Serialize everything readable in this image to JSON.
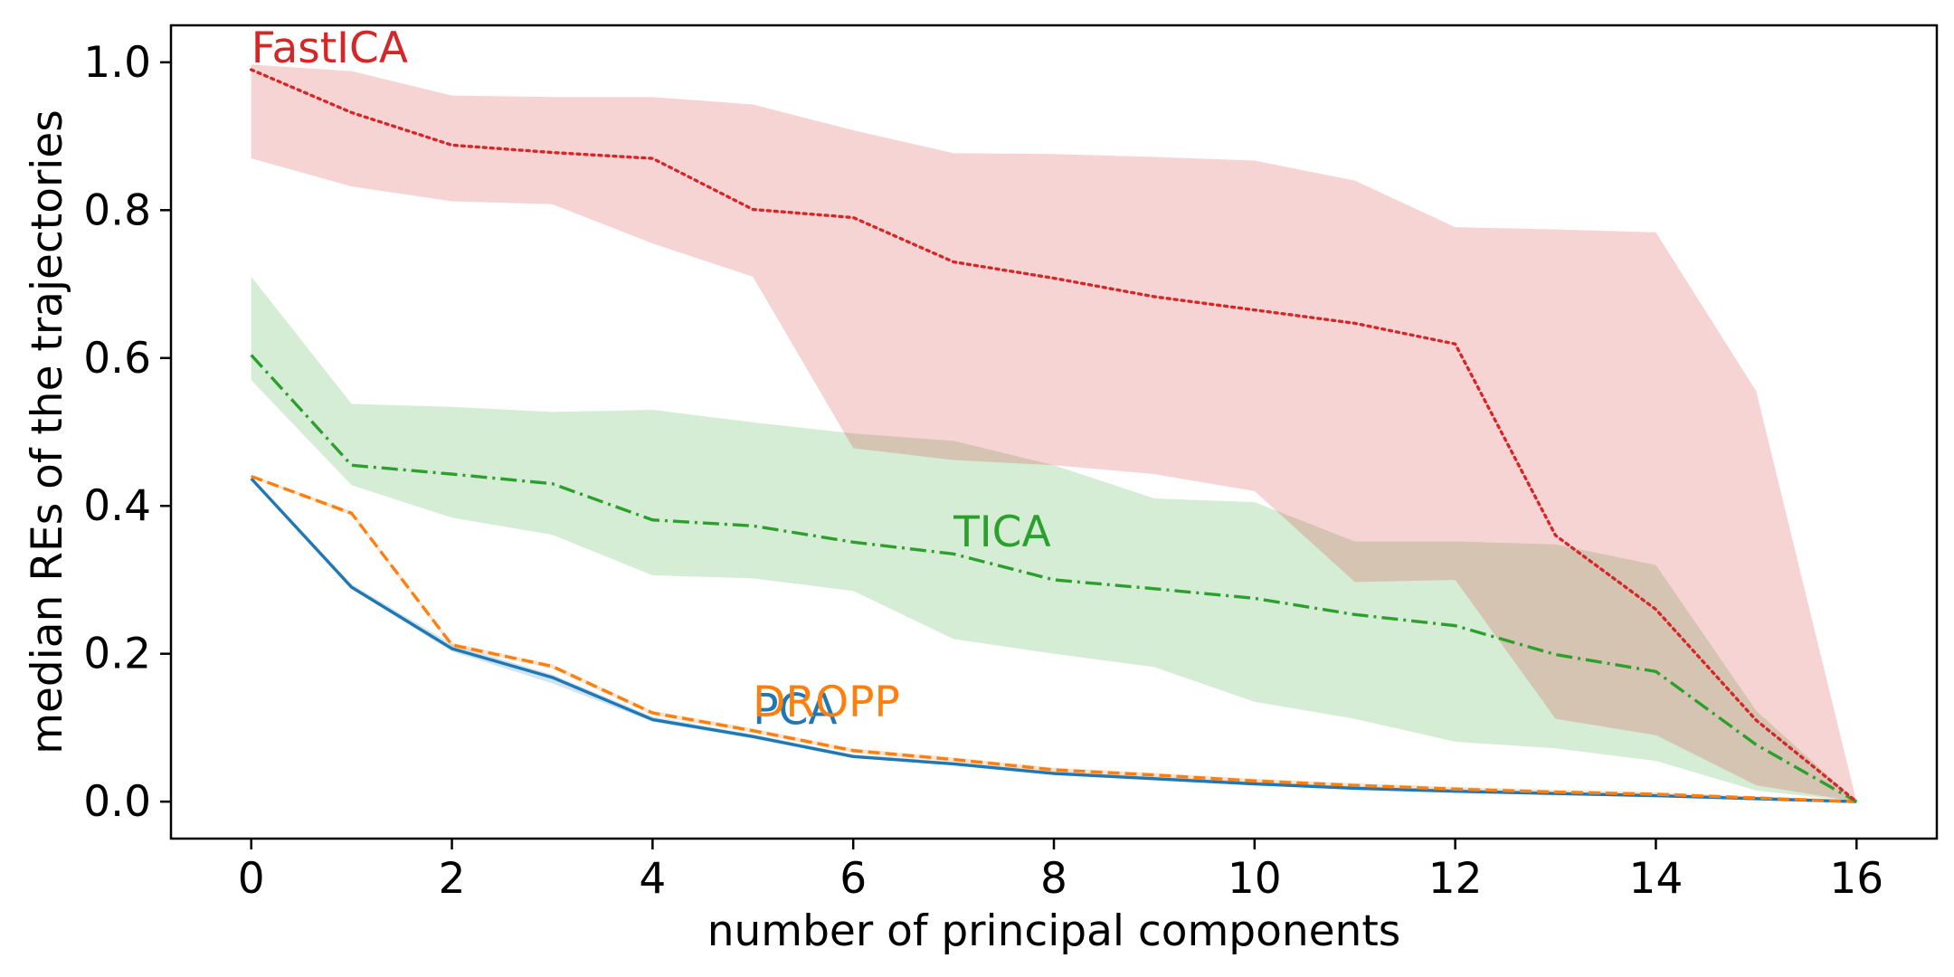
{
  "chart_data": {
    "type": "line",
    "title": "",
    "xlabel": "number of principal components",
    "ylabel": "median REs of the trajectories",
    "xlim": [
      -0.8,
      16.8
    ],
    "ylim": [
      -0.05,
      1.05
    ],
    "xticks": [
      0,
      2,
      4,
      6,
      8,
      10,
      12,
      14,
      16
    ],
    "xtick_labels": [
      "0",
      "2",
      "4",
      "6",
      "8",
      "10",
      "12",
      "14",
      "16"
    ],
    "yticks": [
      0.0,
      0.2,
      0.4,
      0.6,
      0.8,
      1.0
    ],
    "ytick_labels": [
      "0.0",
      "0.2",
      "0.4",
      "0.6",
      "0.8",
      "1.0"
    ],
    "grid": false,
    "legend": "none (inline series labels)",
    "x": [
      0,
      1,
      2,
      3,
      4,
      5,
      6,
      7,
      8,
      9,
      10,
      11,
      12,
      13,
      14,
      15,
      16
    ],
    "series": [
      {
        "name": "PCA",
        "color": "#1f77b4",
        "style": "solid",
        "label_at": [
          5,
          0.105
        ],
        "values": [
          0.437,
          0.29,
          0.207,
          0.168,
          0.111,
          0.088,
          0.061,
          0.051,
          0.038,
          0.031,
          0.024,
          0.018,
          0.014,
          0.011,
          0.008,
          0.004,
          0.0
        ],
        "band_low": [
          0.435,
          0.288,
          0.203,
          0.16,
          0.108,
          0.085,
          0.059,
          0.049,
          0.036,
          0.029,
          0.022,
          0.016,
          0.012,
          0.009,
          0.006,
          0.003,
          0.0
        ],
        "band_high": [
          0.44,
          0.294,
          0.213,
          0.172,
          0.115,
          0.091,
          0.064,
          0.054,
          0.041,
          0.034,
          0.027,
          0.021,
          0.017,
          0.013,
          0.01,
          0.005,
          0.0
        ]
      },
      {
        "name": "DROPP",
        "color": "#ff7f0e",
        "style": "dashed",
        "label_at": [
          5,
          0.115
        ],
        "values": [
          0.44,
          0.39,
          0.212,
          0.183,
          0.12,
          0.096,
          0.069,
          0.057,
          0.043,
          0.036,
          0.028,
          0.022,
          0.017,
          0.013,
          0.01,
          0.005,
          0.0
        ],
        "band_low": [
          0.438,
          0.387,
          0.209,
          0.18,
          0.117,
          0.093,
          0.066,
          0.054,
          0.04,
          0.033,
          0.025,
          0.019,
          0.014,
          0.01,
          0.007,
          0.003,
          0.0
        ],
        "band_high": [
          0.442,
          0.393,
          0.215,
          0.186,
          0.123,
          0.099,
          0.072,
          0.06,
          0.046,
          0.039,
          0.031,
          0.025,
          0.02,
          0.016,
          0.013,
          0.007,
          0.0
        ]
      },
      {
        "name": "TICA",
        "color": "#2ca02c",
        "style": "dashdot",
        "label_at": [
          7,
          0.345
        ],
        "values": [
          0.604,
          0.455,
          0.443,
          0.43,
          0.381,
          0.373,
          0.351,
          0.335,
          0.3,
          0.288,
          0.275,
          0.253,
          0.238,
          0.199,
          0.176,
          0.077,
          0.0
        ],
        "band_low": [
          0.57,
          0.428,
          0.384,
          0.361,
          0.306,
          0.302,
          0.285,
          0.22,
          0.2,
          0.182,
          0.135,
          0.112,
          0.081,
          0.072,
          0.055,
          0.015,
          0.0
        ],
        "band_high": [
          0.71,
          0.538,
          0.534,
          0.527,
          0.53,
          0.513,
          0.498,
          0.488,
          0.455,
          0.41,
          0.405,
          0.352,
          0.352,
          0.348,
          0.32,
          0.123,
          0.0
        ]
      },
      {
        "name": "FastICA",
        "color": "#d62728",
        "style": "dotted",
        "label_at": [
          0,
          1.0
        ],
        "values": [
          0.99,
          0.932,
          0.888,
          0.878,
          0.87,
          0.801,
          0.79,
          0.73,
          0.708,
          0.683,
          0.665,
          0.647,
          0.619,
          0.36,
          0.26,
          0.11,
          0.0
        ],
        "band_low": [
          0.87,
          0.832,
          0.812,
          0.808,
          0.755,
          0.71,
          0.478,
          0.462,
          0.455,
          0.443,
          0.42,
          0.297,
          0.3,
          0.112,
          0.09,
          0.022,
          0.0
        ],
        "band_high": [
          0.997,
          0.988,
          0.955,
          0.953,
          0.953,
          0.943,
          0.908,
          0.877,
          0.876,
          0.872,
          0.867,
          0.84,
          0.777,
          0.774,
          0.77,
          0.555,
          0.0
        ]
      }
    ]
  }
}
